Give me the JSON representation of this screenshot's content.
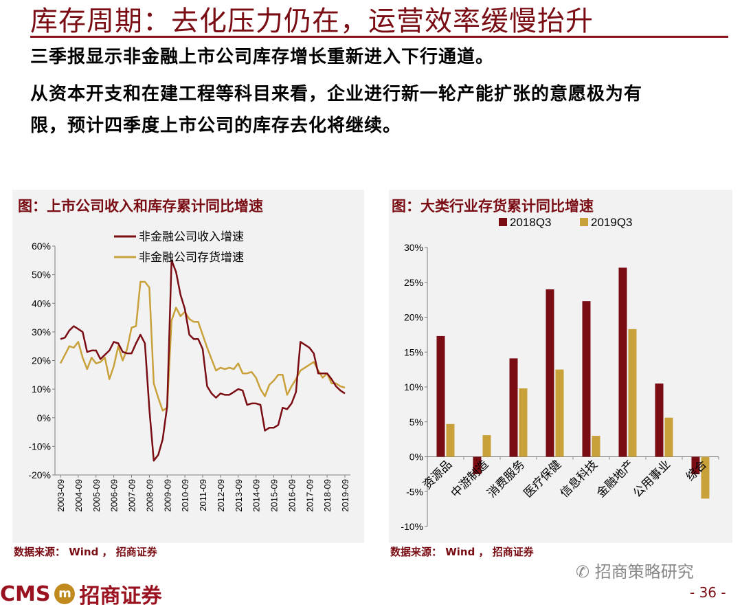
{
  "page": {
    "title": "库存周期：去化压力仍在，运营效率缓慢抬升",
    "para1": "三季报显示非金融上市公司库存增长重新进入下行通道。",
    "para2_line1": "从资本开支和在建工程等科目来看，企业进行新一轮产能扩张的意愿极为有",
    "para2_line2": "限，预计四季度上市公司的库存去化将继续。",
    "source": "数据来源： Wind ， 招商证券",
    "logo_text": "CMS",
    "logo_cn": "招商证券",
    "wechat": "招商策略研究",
    "page_number": "- 36 -",
    "colors": {
      "primary": "#7a0c14",
      "gold": "#c9a13a",
      "panel": "#f2f2f2"
    }
  },
  "chart_data": [
    {
      "type": "line",
      "title": "图：上市公司收入和库存累计同比增速",
      "ylim": [
        -20,
        60
      ],
      "yticks": [
        -20,
        -10,
        0,
        10,
        20,
        30,
        40,
        50,
        60
      ],
      "ytick_labels": [
        "-20%",
        "-10%",
        "0%",
        "10%",
        "20%",
        "30%",
        "40%",
        "50%",
        "60%"
      ],
      "xlim": [
        0,
        64
      ],
      "xtick_positions": [
        0,
        4,
        8,
        12,
        16,
        20,
        24,
        28,
        32,
        36,
        40,
        44,
        48,
        52,
        56,
        60,
        64
      ],
      "xtick_labels": [
        "2003-09",
        "2004-09",
        "2005-09",
        "2006-09",
        "2007-09",
        "2008-09",
        "2009-09",
        "2010-09",
        "2011-09",
        "2012-09",
        "2013-09",
        "2014-09",
        "2015-09",
        "2016-09",
        "2017-09",
        "2018-09",
        "2019-09"
      ],
      "series": [
        {
          "name": "非金融公司收入增速",
          "color": "#7a0c14",
          "values": [
            27.5,
            28,
            30.5,
            32,
            31,
            30,
            23,
            23.5,
            23.5,
            20.5,
            22,
            23.5,
            26.5,
            26,
            23,
            22.5,
            22.5,
            26,
            29,
            26,
            3,
            -15,
            -13,
            -7.5,
            4,
            55,
            51,
            43,
            38,
            29,
            27.5,
            27.5,
            24,
            11,
            8.5,
            7,
            8.5,
            8,
            8,
            9,
            10,
            9.5,
            4.5,
            5,
            5,
            4.5,
            -4.5,
            -3.5,
            -3.5,
            -2.5,
            3.5,
            3,
            5,
            9,
            26.5,
            25.5,
            24.5,
            22.5,
            15.5,
            15.5,
            15.5,
            13.5,
            11,
            9.5,
            8.5
          ]
        },
        {
          "name": "非金融公司存货增速",
          "color": "#c9a13a",
          "values": [
            19,
            22,
            25,
            24.5,
            26.5,
            21,
            17,
            21,
            19,
            19.5,
            21,
            13.5,
            18,
            25,
            20,
            24,
            31.5,
            32,
            47.5,
            47.5,
            45.5,
            12,
            7,
            2.5,
            3.5,
            34,
            38.5,
            35.5,
            37,
            34.5,
            33.5,
            33.5,
            29,
            24.5,
            20.5,
            16.5,
            17.5,
            17,
            17.5,
            17,
            19,
            15.5,
            15.5,
            16,
            14,
            10,
            7.5,
            11.5,
            13,
            15,
            15,
            8,
            11,
            13.5,
            16.5,
            17.5,
            18.5,
            19.5,
            16.5,
            14,
            15.5,
            12,
            12,
            11,
            10.5
          ]
        }
      ]
    },
    {
      "type": "bar",
      "title": "图：大类行业存货累计同比增速",
      "categories": [
        "资源品",
        "中游制造",
        "消费服务",
        "医疗保健",
        "信息科技",
        "金融地产",
        "公用事业",
        "综合"
      ],
      "series": [
        {
          "name": "2018Q3",
          "color": "#7a0c14",
          "values": [
            17.3,
            -2.5,
            14.1,
            24.0,
            22.3,
            27.1,
            10.5,
            -2.5
          ]
        },
        {
          "name": "2019Q3",
          "color": "#c9a13a",
          "values": [
            4.7,
            3.1,
            9.8,
            12.5,
            3.0,
            18.3,
            5.6,
            -6.0
          ]
        }
      ],
      "ylim": [
        -10,
        30
      ],
      "yticks": [
        -10,
        -5,
        0,
        5,
        10,
        15,
        20,
        25,
        30
      ],
      "ytick_labels": [
        "-10%",
        "-5%",
        "0%",
        "5%",
        "10%",
        "15%",
        "20%",
        "25%",
        "30%"
      ]
    }
  ]
}
